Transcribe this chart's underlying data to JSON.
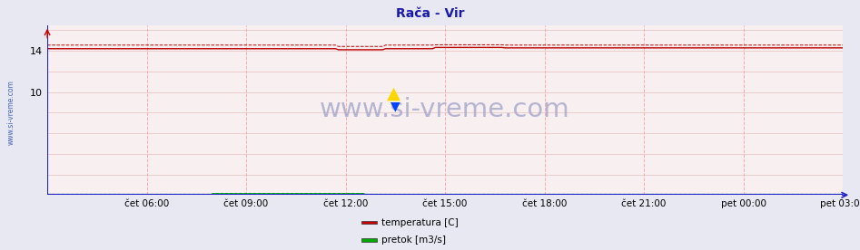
{
  "title": "Rača - Vir",
  "title_color": "#1a1aaa",
  "title_fontsize": 10,
  "title_bold": true,
  "bg_color": "#e8e8f2",
  "plot_bg_color": "#f8f0f0",
  "x_end": 288,
  "y_min": 0,
  "y_max": 16.5,
  "y_ticks": [
    10,
    14
  ],
  "temp_value": 14.2,
  "temp_dashed_value": 14.55,
  "temp_bump_start": 105,
  "temp_bump_end": 122,
  "temp_bump_val": 14.1,
  "temp_rise_start": 140,
  "temp_rise_end": 165,
  "temp_rise_val": 14.32,
  "temp_after": 14.28,
  "temp_color": "#bb0000",
  "flow_value": 0.04,
  "flow_bump_start": 60,
  "flow_bump_end": 115,
  "flow_bump_val": 0.12,
  "flow_color": "#00aa00",
  "axis_color": "#2222cc",
  "hgrid_color": "#e8c8c8",
  "vgrid_color": "#ffaaaa",
  "watermark": "www.si-vreme.com",
  "watermark_color": "#aaaacc",
  "watermark_fontsize": 21,
  "side_label": "www.si-vreme.com",
  "side_label_color": "#3355aa",
  "x_tick_labels": [
    "čet 06:00",
    "čet 09:00",
    "čet 12:00",
    "čet 15:00",
    "čet 18:00",
    "čet 21:00",
    "pet 00:00",
    "pet 03:00"
  ],
  "x_tick_positions": [
    36,
    72,
    108,
    144,
    180,
    216,
    252,
    288
  ],
  "legend_items": [
    {
      "label": "temperatura [C]",
      "color": "#cc0000"
    },
    {
      "label": "pretok [m3/s]",
      "color": "#00aa00"
    }
  ]
}
